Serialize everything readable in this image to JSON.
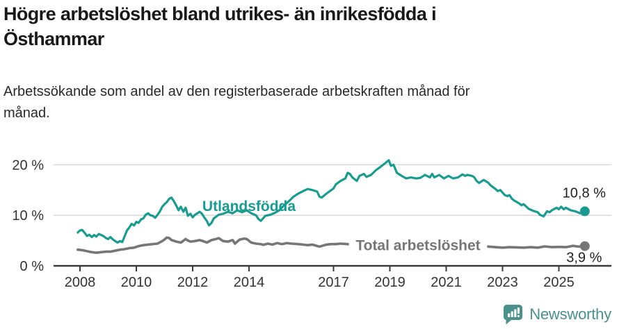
{
  "header": {
    "title_lines": [
      "Högre arbetslöshet bland utrikes- än inrikesfödda i",
      "Östhammar"
    ],
    "subtitle_lines": [
      "Arbetssökande som andel av den registerbaserade arbetskraften månad för",
      "månad."
    ]
  },
  "footer": {
    "brand": "Newsworthy",
    "logo_icon": "bar-chart-speech-bubble-icon",
    "brand_color": "#4a918e"
  },
  "chart_data": {
    "type": "line",
    "title": "Högre arbetslöshet bland utrikes- än inrikesfödda i Östhammar",
    "subtitle": "Arbetssökande som andel av den registerbaserade arbetskraften månad för månad.",
    "grid": true,
    "legend_position": "inline-labels",
    "x_axis": {
      "tick_years": [
        2008,
        2010,
        2012,
        2014,
        2017,
        2019,
        2021,
        2023,
        2025
      ],
      "range": [
        2007.6,
        2026.4
      ]
    },
    "y_axis": {
      "ticks": [
        {
          "value": 0,
          "label": "0 %"
        },
        {
          "value": 10,
          "label": "10 %"
        },
        {
          "value": 20,
          "label": "20 %"
        }
      ],
      "range": [
        0,
        22
      ]
    },
    "colors": {
      "grid": "#d9d9d9",
      "axis": "#3a3a3a",
      "tick_text": "#333333",
      "end_label_text": "#1f1f1f"
    },
    "series": [
      {
        "name": "Utlandsfödda",
        "color": "#189c91",
        "end_label": "10,8 %",
        "end_value": 10.8,
        "end_label_side": "above",
        "label_pos": {
          "year": 2014.0,
          "pct": 11.9
        },
        "label_bg": false,
        "points": [
          [
            2007.92,
            6.6
          ],
          [
            2008.0,
            7.0
          ],
          [
            2008.08,
            7.1
          ],
          [
            2008.17,
            6.5
          ],
          [
            2008.25,
            5.9
          ],
          [
            2008.33,
            6.15
          ],
          [
            2008.42,
            5.7
          ],
          [
            2008.5,
            6.1
          ],
          [
            2008.58,
            5.8
          ],
          [
            2008.67,
            6.3
          ],
          [
            2008.75,
            6.1
          ],
          [
            2008.83,
            5.9
          ],
          [
            2008.92,
            5.5
          ],
          [
            2009.0,
            5.3
          ],
          [
            2009.08,
            5.7
          ],
          [
            2009.17,
            5.2
          ],
          [
            2009.25,
            4.9
          ],
          [
            2009.33,
            4.6
          ],
          [
            2009.42,
            4.9
          ],
          [
            2009.5,
            4.7
          ],
          [
            2009.58,
            5.8
          ],
          [
            2009.67,
            7.0
          ],
          [
            2009.75,
            7.6
          ],
          [
            2009.83,
            8.3
          ],
          [
            2009.92,
            8.0
          ],
          [
            2010.0,
            8.7
          ],
          [
            2010.08,
            8.5
          ],
          [
            2010.17,
            9.2
          ],
          [
            2010.25,
            9.4
          ],
          [
            2010.33,
            10.1
          ],
          [
            2010.42,
            10.4
          ],
          [
            2010.5,
            10.0
          ],
          [
            2010.58,
            9.9
          ],
          [
            2010.67,
            9.5
          ],
          [
            2010.75,
            10.1
          ],
          [
            2010.83,
            10.7
          ],
          [
            2010.92,
            11.7
          ],
          [
            2011.0,
            12.2
          ],
          [
            2011.08,
            12.6
          ],
          [
            2011.17,
            13.3
          ],
          [
            2011.25,
            13.5
          ],
          [
            2011.33,
            12.8
          ],
          [
            2011.42,
            11.9
          ],
          [
            2011.5,
            11.0
          ],
          [
            2011.58,
            11.7
          ],
          [
            2011.67,
            10.7
          ],
          [
            2011.75,
            11.5
          ],
          [
            2011.83,
            9.9
          ],
          [
            2011.92,
            10.3
          ],
          [
            2012.0,
            9.6
          ],
          [
            2012.08,
            10.1
          ],
          [
            2012.17,
            10.4
          ],
          [
            2012.25,
            10.7
          ],
          [
            2012.33,
            10.3
          ],
          [
            2012.42,
            9.5
          ],
          [
            2012.5,
            8.9
          ],
          [
            2012.58,
            8.0
          ],
          [
            2012.67,
            8.5
          ],
          [
            2012.75,
            9.4
          ],
          [
            2012.92,
            10.1
          ],
          [
            2013.08,
            10.3
          ],
          [
            2013.25,
            10.7
          ],
          [
            2013.42,
            10.4
          ],
          [
            2013.58,
            11.0
          ],
          [
            2013.75,
            10.6
          ],
          [
            2013.92,
            11.0
          ],
          [
            2014.08,
            10.4
          ],
          [
            2014.25,
            10.0
          ],
          [
            2014.33,
            9.3
          ],
          [
            2014.42,
            8.9
          ],
          [
            2014.5,
            9.4
          ],
          [
            2014.58,
            9.9
          ],
          [
            2014.75,
            10.1
          ],
          [
            2014.92,
            10.5
          ],
          [
            2015.08,
            11.0
          ],
          [
            2015.25,
            12.0
          ],
          [
            2015.42,
            12.8
          ],
          [
            2015.58,
            13.7
          ],
          [
            2015.75,
            14.3
          ],
          [
            2015.92,
            14.8
          ],
          [
            2016.08,
            15.2
          ],
          [
            2016.25,
            15.0
          ],
          [
            2016.42,
            14.7
          ],
          [
            2016.5,
            13.7
          ],
          [
            2016.58,
            13.5
          ],
          [
            2016.75,
            14.3
          ],
          [
            2016.92,
            15.0
          ],
          [
            2017.0,
            15.3
          ],
          [
            2017.08,
            16.1
          ],
          [
            2017.25,
            16.8
          ],
          [
            2017.42,
            17.3
          ],
          [
            2017.5,
            18.4
          ],
          [
            2017.58,
            18.2
          ],
          [
            2017.67,
            17.5
          ],
          [
            2017.83,
            16.8
          ],
          [
            2017.92,
            17.8
          ],
          [
            2018.08,
            18.2
          ],
          [
            2018.17,
            17.6
          ],
          [
            2018.33,
            18.0
          ],
          [
            2018.5,
            18.9
          ],
          [
            2018.67,
            19.6
          ],
          [
            2018.83,
            20.3
          ],
          [
            2018.96,
            20.9
          ],
          [
            2019.04,
            19.8
          ],
          [
            2019.13,
            20.0
          ],
          [
            2019.25,
            18.4
          ],
          [
            2019.42,
            17.8
          ],
          [
            2019.58,
            17.3
          ],
          [
            2019.75,
            17.5
          ],
          [
            2019.92,
            17.3
          ],
          [
            2020.08,
            17.4
          ],
          [
            2020.25,
            18.0
          ],
          [
            2020.42,
            17.5
          ],
          [
            2020.5,
            18.2
          ],
          [
            2020.58,
            17.5
          ],
          [
            2020.75,
            18.0
          ],
          [
            2020.92,
            17.3
          ],
          [
            2021.08,
            17.8
          ],
          [
            2021.25,
            17.3
          ],
          [
            2021.42,
            17.5
          ],
          [
            2021.58,
            18.1
          ],
          [
            2021.67,
            17.8
          ],
          [
            2021.75,
            18.0
          ],
          [
            2021.92,
            17.8
          ],
          [
            2022.0,
            17.5
          ],
          [
            2022.08,
            16.8
          ],
          [
            2022.17,
            16.4
          ],
          [
            2022.33,
            17.0
          ],
          [
            2022.42,
            16.7
          ],
          [
            2022.5,
            16.4
          ],
          [
            2022.58,
            15.9
          ],
          [
            2022.75,
            15.2
          ],
          [
            2022.83,
            14.8
          ],
          [
            2022.92,
            15.0
          ],
          [
            2023.08,
            14.0
          ],
          [
            2023.17,
            13.8
          ],
          [
            2023.25,
            14.0
          ],
          [
            2023.33,
            13.3
          ],
          [
            2023.42,
            12.9
          ],
          [
            2023.58,
            12.4
          ],
          [
            2023.67,
            12.0
          ],
          [
            2023.75,
            12.2
          ],
          [
            2023.92,
            11.3
          ],
          [
            2024.08,
            10.9
          ],
          [
            2024.25,
            10.6
          ],
          [
            2024.33,
            10.1
          ],
          [
            2024.46,
            9.8
          ],
          [
            2024.58,
            10.8
          ],
          [
            2024.67,
            10.6
          ],
          [
            2024.75,
            11.0
          ],
          [
            2024.92,
            11.5
          ],
          [
            2025.0,
            11.2
          ],
          [
            2025.08,
            11.7
          ],
          [
            2025.17,
            11.2
          ],
          [
            2025.25,
            11.5
          ],
          [
            2025.42,
            11.0
          ],
          [
            2025.58,
            10.8
          ],
          [
            2025.67,
            10.6
          ],
          [
            2025.75,
            10.4
          ],
          [
            2025.83,
            10.6
          ],
          [
            2025.92,
            10.8
          ]
        ]
      },
      {
        "name": "Total arbetslöshet",
        "color": "#767676",
        "end_label": "3,9 %",
        "end_value": 3.9,
        "end_label_side": "below",
        "label_pos": {
          "year": 2020.0,
          "pct": 4.15
        },
        "label_bg": true,
        "points": [
          [
            2007.92,
            3.2
          ],
          [
            2008.08,
            3.1
          ],
          [
            2008.25,
            2.9
          ],
          [
            2008.42,
            2.7
          ],
          [
            2008.58,
            2.6
          ],
          [
            2008.75,
            2.7
          ],
          [
            2008.92,
            2.8
          ],
          [
            2009.08,
            2.8
          ],
          [
            2009.25,
            3.0
          ],
          [
            2009.42,
            3.2
          ],
          [
            2009.58,
            3.3
          ],
          [
            2009.75,
            3.5
          ],
          [
            2009.92,
            3.6
          ],
          [
            2010.08,
            3.9
          ],
          [
            2010.25,
            4.1
          ],
          [
            2010.42,
            4.2
          ],
          [
            2010.58,
            4.3
          ],
          [
            2010.75,
            4.4
          ],
          [
            2010.92,
            4.9
          ],
          [
            2011.0,
            5.2
          ],
          [
            2011.08,
            5.6
          ],
          [
            2011.17,
            5.5
          ],
          [
            2011.25,
            5.1
          ],
          [
            2011.42,
            4.8
          ],
          [
            2011.58,
            4.6
          ],
          [
            2011.75,
            5.3
          ],
          [
            2011.83,
            5.0
          ],
          [
            2011.92,
            4.8
          ],
          [
            2012.08,
            4.9
          ],
          [
            2012.25,
            5.1
          ],
          [
            2012.42,
            4.8
          ],
          [
            2012.5,
            4.6
          ],
          [
            2012.67,
            5.1
          ],
          [
            2012.83,
            5.3
          ],
          [
            2012.92,
            5.5
          ],
          [
            2013.08,
            4.9
          ],
          [
            2013.25,
            4.8
          ],
          [
            2013.42,
            5.1
          ],
          [
            2013.5,
            4.4
          ],
          [
            2013.67,
            5.2
          ],
          [
            2013.83,
            5.4
          ],
          [
            2013.92,
            5.3
          ],
          [
            2014.08,
            4.6
          ],
          [
            2014.25,
            4.4
          ],
          [
            2014.42,
            4.3
          ],
          [
            2014.5,
            4.15
          ],
          [
            2014.67,
            4.4
          ],
          [
            2014.83,
            4.2
          ],
          [
            2015.0,
            4.5
          ],
          [
            2015.17,
            4.3
          ],
          [
            2015.33,
            4.5
          ],
          [
            2015.5,
            4.4
          ],
          [
            2015.75,
            4.3
          ],
          [
            2015.92,
            4.2
          ],
          [
            2016.08,
            4.1
          ],
          [
            2016.25,
            4.2
          ],
          [
            2016.5,
            3.8
          ],
          [
            2016.75,
            4.2
          ],
          [
            2016.92,
            4.3
          ],
          [
            2017.08,
            4.3
          ],
          [
            2017.25,
            4.4
          ],
          [
            2017.5,
            4.3
          ],
          [
            2017.75,
            4.1
          ],
          [
            2018.0,
            4.2
          ],
          [
            2018.25,
            4.1
          ],
          [
            2018.5,
            4.0
          ],
          [
            2018.75,
            4.2
          ],
          [
            2019.0,
            4.1
          ],
          [
            2019.25,
            4.2
          ],
          [
            2019.5,
            4.0
          ],
          [
            2019.75,
            4.1
          ],
          [
            2020.0,
            4.2
          ],
          [
            2020.25,
            4.5
          ],
          [
            2020.5,
            4.4
          ],
          [
            2020.75,
            4.3
          ],
          [
            2021.0,
            4.4
          ],
          [
            2021.25,
            4.2
          ],
          [
            2021.5,
            4.1
          ],
          [
            2021.75,
            4.0
          ],
          [
            2022.0,
            4.0
          ],
          [
            2022.17,
            3.95
          ],
          [
            2022.33,
            3.9
          ],
          [
            2022.5,
            3.8
          ],
          [
            2022.75,
            3.7
          ],
          [
            2023.0,
            3.6
          ],
          [
            2023.25,
            3.7
          ],
          [
            2023.5,
            3.65
          ],
          [
            2023.75,
            3.6
          ],
          [
            2024.0,
            3.7
          ],
          [
            2024.25,
            3.6
          ],
          [
            2024.5,
            3.85
          ],
          [
            2024.75,
            3.7
          ],
          [
            2025.0,
            3.75
          ],
          [
            2025.25,
            3.7
          ],
          [
            2025.5,
            3.95
          ],
          [
            2025.7,
            3.8
          ],
          [
            2025.92,
            3.9
          ]
        ]
      }
    ]
  }
}
